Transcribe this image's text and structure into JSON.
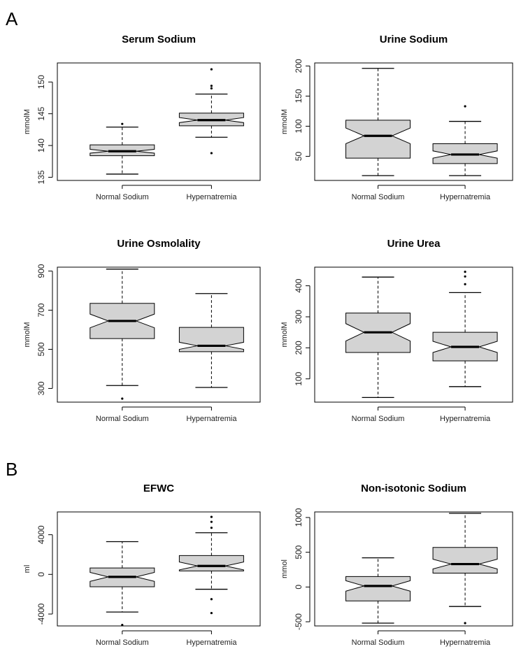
{
  "panel_labels": {
    "A": "A",
    "B": "B"
  },
  "chart_data": [
    {
      "type": "box",
      "title": "Serum Sodium",
      "ylabel": "mmolM",
      "categories": [
        "Normal Sodium",
        "Hypernatremia"
      ],
      "yticks": [
        135,
        140,
        145,
        150
      ],
      "ylim": [
        134.5,
        153
      ],
      "boxes": [
        {
          "whisker_low": 135.5,
          "q1": 138.4,
          "median": 139.1,
          "q3": 140.1,
          "whisker_high": 142.9,
          "notch": [
            138.8,
            139.4
          ],
          "outliers": [
            143.4
          ]
        },
        {
          "whisker_low": 141.3,
          "q1": 143.1,
          "median": 144.0,
          "q3": 145.1,
          "whisker_high": 148.1,
          "notch": [
            143.6,
            144.4
          ],
          "outliers": [
            138.8,
            149.0,
            149.4,
            152.0
          ]
        }
      ]
    },
    {
      "type": "box",
      "title": "Urine Sodium",
      "ylabel": "mmolM",
      "categories": [
        "Normal Sodium",
        "Hypernatremia"
      ],
      "yticks": [
        50,
        100,
        150,
        200
      ],
      "ylim": [
        10,
        205
      ],
      "boxes": [
        {
          "whisker_low": 18,
          "q1": 47,
          "median": 84,
          "q3": 110,
          "whisker_high": 196,
          "notch": [
            71,
            97
          ],
          "outliers": []
        },
        {
          "whisker_low": 18,
          "q1": 38,
          "median": 53,
          "q3": 71,
          "whisker_high": 108,
          "notch": [
            47,
            59
          ],
          "outliers": [
            133
          ]
        }
      ]
    },
    {
      "type": "box",
      "title": "Urine Osmolality",
      "ylabel": "mmolM",
      "categories": [
        "Normal Sodium",
        "Hypernatremia"
      ],
      "yticks": [
        300,
        500,
        700,
        900
      ],
      "ylim": [
        230,
        920
      ],
      "boxes": [
        {
          "whisker_low": 315,
          "q1": 555,
          "median": 645,
          "q3": 735,
          "whisker_high": 910,
          "notch": [
            610,
            680
          ],
          "outliers": [
            248
          ]
        },
        {
          "whisker_low": 305,
          "q1": 488,
          "median": 518,
          "q3": 612,
          "whisker_high": 785,
          "notch": [
            500,
            536
          ],
          "outliers": []
        }
      ]
    },
    {
      "type": "box",
      "title": "Urine Urea",
      "ylabel": "mmolM",
      "categories": [
        "Normal Sodium",
        "Hypernatremia"
      ],
      "yticks": [
        100,
        200,
        300,
        400
      ],
      "ylim": [
        25,
        460
      ],
      "boxes": [
        {
          "whisker_low": 40,
          "q1": 185,
          "median": 250,
          "q3": 312,
          "whisker_high": 428,
          "notch": [
            222,
            278
          ],
          "outliers": []
        },
        {
          "whisker_low": 75,
          "q1": 158,
          "median": 203,
          "q3": 250,
          "whisker_high": 378,
          "notch": [
            185,
            221
          ],
          "outliers": [
            405,
            430,
            445
          ]
        }
      ]
    },
    {
      "type": "box",
      "title": "EFWC",
      "ylabel": "ml",
      "categories": [
        "Normal Sodium",
        "Hypernatremia"
      ],
      "yticks": [
        -4000,
        0,
        4000
      ],
      "ytick_labels": [
        "-4000",
        "0",
        "4000"
      ],
      "ylim": [
        -5200,
        6300
      ],
      "boxes": [
        {
          "whisker_low": -3800,
          "q1": -1250,
          "median": -250,
          "q3": 650,
          "whisker_high": 3300,
          "notch": [
            -700,
            200
          ],
          "outliers": [
            -5100
          ]
        },
        {
          "whisker_low": -1500,
          "q1": 350,
          "median": 850,
          "q3": 1900,
          "whisker_high": 4200,
          "notch": [
            450,
            1250
          ],
          "outliers": [
            -2500,
            -3900,
            4700,
            5300,
            5800
          ]
        }
      ]
    },
    {
      "type": "box",
      "title": "Non-isotonic Sodium",
      "ylabel": "mmol",
      "categories": [
        "Normal Sodium",
        "Hypernatremia"
      ],
      "yticks": [
        -500,
        0,
        500,
        1000
      ],
      "ytick_labels": [
        "-500",
        "0",
        "500",
        "1000"
      ],
      "ylim": [
        -560,
        1080
      ],
      "boxes": [
        {
          "whisker_low": -520,
          "q1": -200,
          "median": 15,
          "q3": 150,
          "whisker_high": 420,
          "notch": [
            -60,
            90
          ],
          "outliers": []
        },
        {
          "whisker_low": -280,
          "q1": 200,
          "median": 330,
          "q3": 570,
          "whisker_high": 1060,
          "notch": [
            260,
            400
          ],
          "outliers": [
            -520
          ]
        }
      ]
    }
  ]
}
